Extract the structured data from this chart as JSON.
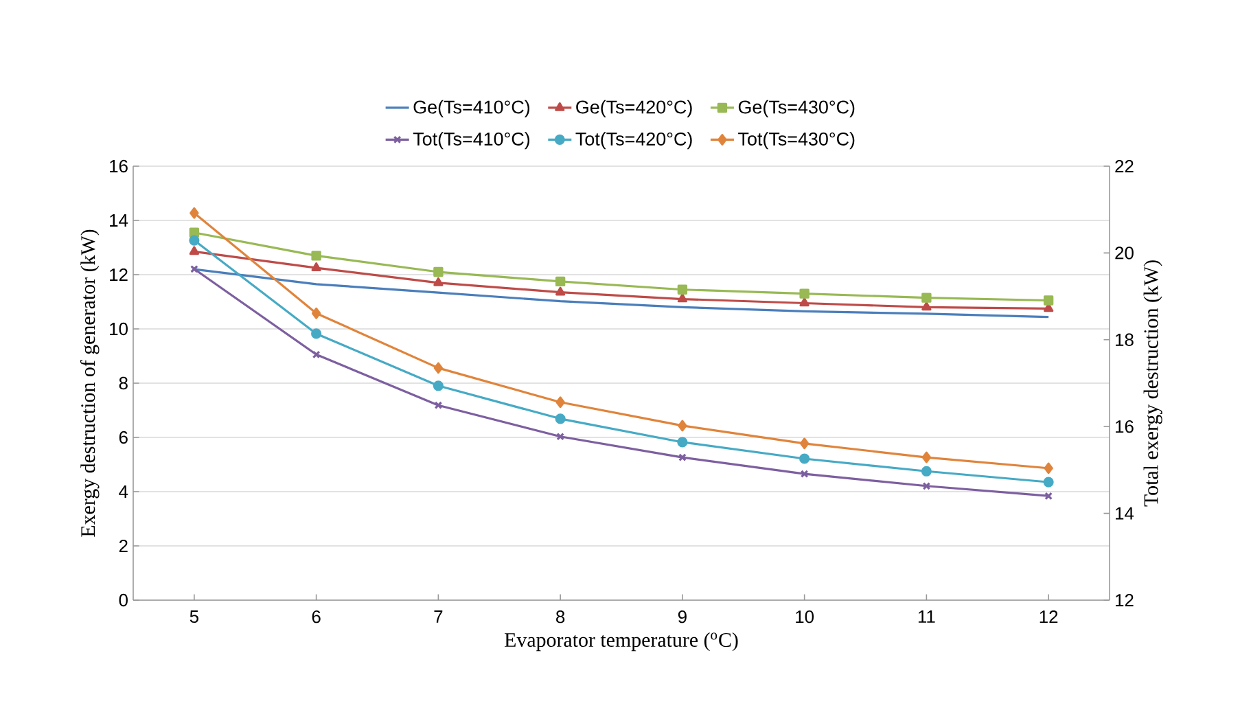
{
  "chart_data": {
    "type": "line",
    "xlabel": "Evaporator temperature ($^{o}$C)",
    "ylabel": "Exergy destruction of generator (kW)",
    "y2label": "Total exergy destruction (kW)",
    "categories": [
      "5",
      "6",
      "7",
      "8",
      "9",
      "10",
      "11",
      "12"
    ],
    "ylim": [
      0,
      16
    ],
    "yticks": [
      0,
      2,
      4,
      6,
      8,
      10,
      12,
      14,
      16
    ],
    "y2lim": [
      12,
      22
    ],
    "y2ticks": [
      12,
      14,
      16,
      18,
      20,
      22
    ],
    "grid": "y",
    "legend": "top",
    "series": [
      {
        "name": "Ge(Ts=410°C)",
        "color": "#4a7ebb",
        "marker": "none",
        "values": [
          12.2,
          11.65,
          11.34,
          11.02,
          10.8,
          10.65,
          10.56,
          10.44
        ]
      },
      {
        "name": "Ge(Ts=420°C)",
        "color": "#be4b48",
        "marker": "triangle",
        "values": [
          12.85,
          12.25,
          11.7,
          11.35,
          11.1,
          10.95,
          10.8,
          10.75
        ]
      },
      {
        "name": "Ge(Ts=430°C)",
        "color": "#98b954",
        "marker": "square",
        "values": [
          13.55,
          12.7,
          12.1,
          11.75,
          11.45,
          11.3,
          11.15,
          11.05
        ]
      },
      {
        "name": "Tot(Ts=410°C)",
        "color": "#7d5fa0",
        "marker": "cross",
        "axis": "y2",
        "values": [
          19.63,
          17.66,
          16.49,
          15.77,
          15.29,
          14.91,
          14.63,
          14.4
        ]
      },
      {
        "name": "Tot(Ts=420°C)",
        "color": "#46aac5",
        "marker": "circle",
        "axis": "y2",
        "values": [
          20.29,
          18.14,
          16.94,
          16.18,
          15.64,
          15.26,
          14.97,
          14.72
        ]
      },
      {
        "name": "Tot(Ts=430°C)",
        "color": "#e0843b",
        "marker": "diamond",
        "axis": "y2",
        "values": [
          20.92,
          18.61,
          17.35,
          16.56,
          16.02,
          15.61,
          15.29,
          15.04
        ]
      }
    ]
  }
}
